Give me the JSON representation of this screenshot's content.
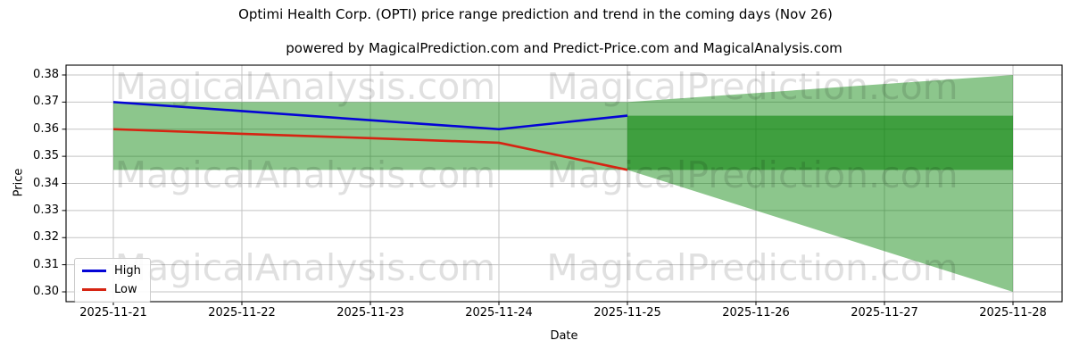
{
  "chart_data": {
    "type": "line",
    "title": "Optimi Health Corp. (OPTI) price range prediction and trend in the coming days (Nov 26)",
    "subtitle": "powered by MagicalPrediction.com and Predict-Price.com and MagicalAnalysis.com",
    "xlabel": "Date",
    "ylabel": "Price",
    "x_categories": [
      "2025-11-21",
      "2025-11-22",
      "2025-11-23",
      "2025-11-24",
      "2025-11-25",
      "2025-11-26",
      "2025-11-27",
      "2025-11-28"
    ],
    "y_ticks": [
      0.38,
      0.37,
      0.36,
      0.35,
      0.34,
      0.33,
      0.32,
      0.31,
      0.3
    ],
    "ylim": [
      0.296,
      0.384
    ],
    "grid": true,
    "grid_color": "#c3c3c3",
    "legend_position": "lower left",
    "series": [
      {
        "name": "High",
        "color": "#0404d6",
        "x": [
          "2025-11-21",
          "2025-11-22",
          "2025-11-23",
          "2025-11-24",
          "2025-11-25"
        ],
        "values": [
          0.37,
          0.3667,
          0.3633,
          0.36,
          0.365
        ]
      },
      {
        "name": "Low",
        "color": "#d62412",
        "x": [
          "2025-11-21",
          "2025-11-22",
          "2025-11-23",
          "2025-11-24",
          "2025-11-25"
        ],
        "values": [
          0.36,
          0.3583,
          0.3567,
          0.355,
          0.345
        ]
      }
    ],
    "bands": [
      {
        "name": "predicted-price-range",
        "color": "#008000",
        "opacity": 0.45,
        "x": [
          "2025-11-21",
          "2025-11-25",
          "2025-11-28"
        ],
        "top": [
          0.37,
          0.37,
          0.38
        ],
        "bottom": [
          0.345,
          0.345,
          0.3
        ]
      },
      {
        "name": "forecast-core-range",
        "color": "#008000",
        "opacity": 0.55,
        "x": [
          "2025-11-25",
          "2025-11-28"
        ],
        "top": [
          0.365,
          0.365
        ],
        "bottom": [
          0.345,
          0.345
        ]
      }
    ],
    "watermarks": [
      "MagicalAnalysis.com",
      "MagicalPrediction.com"
    ]
  }
}
